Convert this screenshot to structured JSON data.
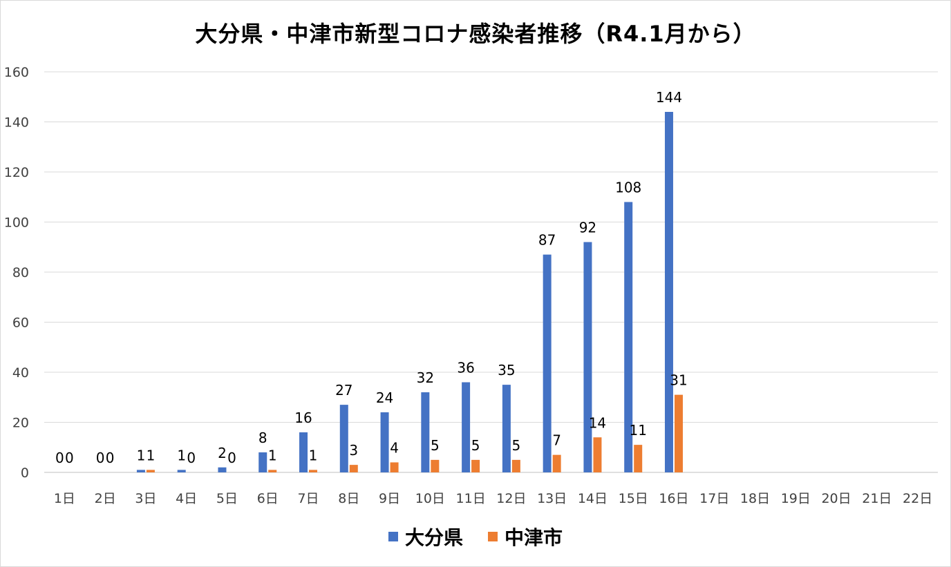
{
  "chart_data": {
    "type": "bar",
    "title": "大分県・中津市新型コロナ感染者推移（R4.1月から）",
    "categories": [
      "1日",
      "2日",
      "3日",
      "4日",
      "5日",
      "6日",
      "7日",
      "8日",
      "9日",
      "10日",
      "11日",
      "12日",
      "13日",
      "14日",
      "15日",
      "16日",
      "17日",
      "18日",
      "19日",
      "20日",
      "21日",
      "22日"
    ],
    "series": [
      {
        "name": "大分県",
        "color": "#4472C4",
        "values": [
          0,
          0,
          1,
          1,
          2,
          8,
          16,
          27,
          24,
          32,
          36,
          35,
          87,
          92,
          108,
          144,
          null,
          null,
          null,
          null,
          null,
          null
        ]
      },
      {
        "name": "中津市",
        "color": "#ED7D31",
        "values": [
          0,
          0,
          1,
          0,
          0,
          1,
          1,
          3,
          4,
          5,
          5,
          5,
          7,
          14,
          11,
          31,
          null,
          null,
          null,
          null,
          null,
          null
        ]
      }
    ],
    "ylim": [
      0,
      160
    ],
    "yticks": [
      0,
      20,
      40,
      60,
      80,
      100,
      120,
      140,
      160
    ],
    "grid": true,
    "legend": "bottom"
  }
}
